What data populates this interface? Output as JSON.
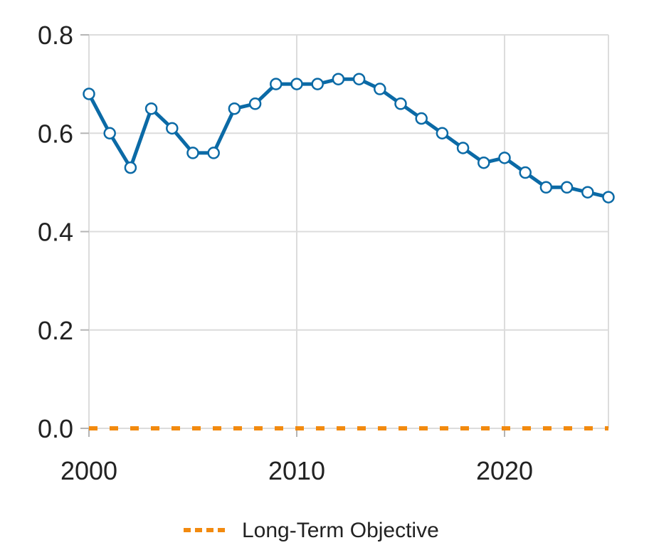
{
  "chart_data": {
    "type": "line",
    "title": "",
    "xlabel": "",
    "ylabel": "",
    "xlim": [
      2000,
      2025
    ],
    "ylim": [
      0,
      0.8
    ],
    "grid": true,
    "legend_position": "bottom",
    "x_ticks": [
      {
        "value": 2000,
        "label": "2000"
      },
      {
        "value": 2010,
        "label": "2010"
      },
      {
        "value": 2020,
        "label": "2020"
      }
    ],
    "y_ticks": [
      {
        "value": 0.0,
        "label": "0.0"
      },
      {
        "value": 0.2,
        "label": "0.2"
      },
      {
        "value": 0.4,
        "label": "0.4"
      },
      {
        "value": 0.6,
        "label": "0.6"
      },
      {
        "value": 0.8,
        "label": "0.8"
      }
    ],
    "series": [
      {
        "color": "#0b6aa6",
        "style": "solid-with-markers",
        "x": [
          2000,
          2001,
          2002,
          2003,
          2004,
          2005,
          2006,
          2007,
          2008,
          2009,
          2010,
          2011,
          2012,
          2013,
          2014,
          2015,
          2016,
          2017,
          2018,
          2019,
          2020,
          2021,
          2022,
          2023,
          2024,
          2025
        ],
        "values": [
          0.68,
          0.6,
          0.53,
          0.65,
          0.61,
          0.56,
          0.56,
          0.65,
          0.66,
          0.7,
          0.7,
          0.7,
          0.71,
          0.71,
          0.69,
          0.66,
          0.63,
          0.6,
          0.57,
          0.54,
          0.55,
          0.52,
          0.49,
          0.49,
          0.48,
          0.47
        ]
      },
      {
        "name": "Long-Term Objective",
        "color": "#f28a0f",
        "style": "dashed",
        "x": [
          2000,
          2025
        ],
        "values": [
          0.0,
          0.0
        ]
      }
    ]
  }
}
